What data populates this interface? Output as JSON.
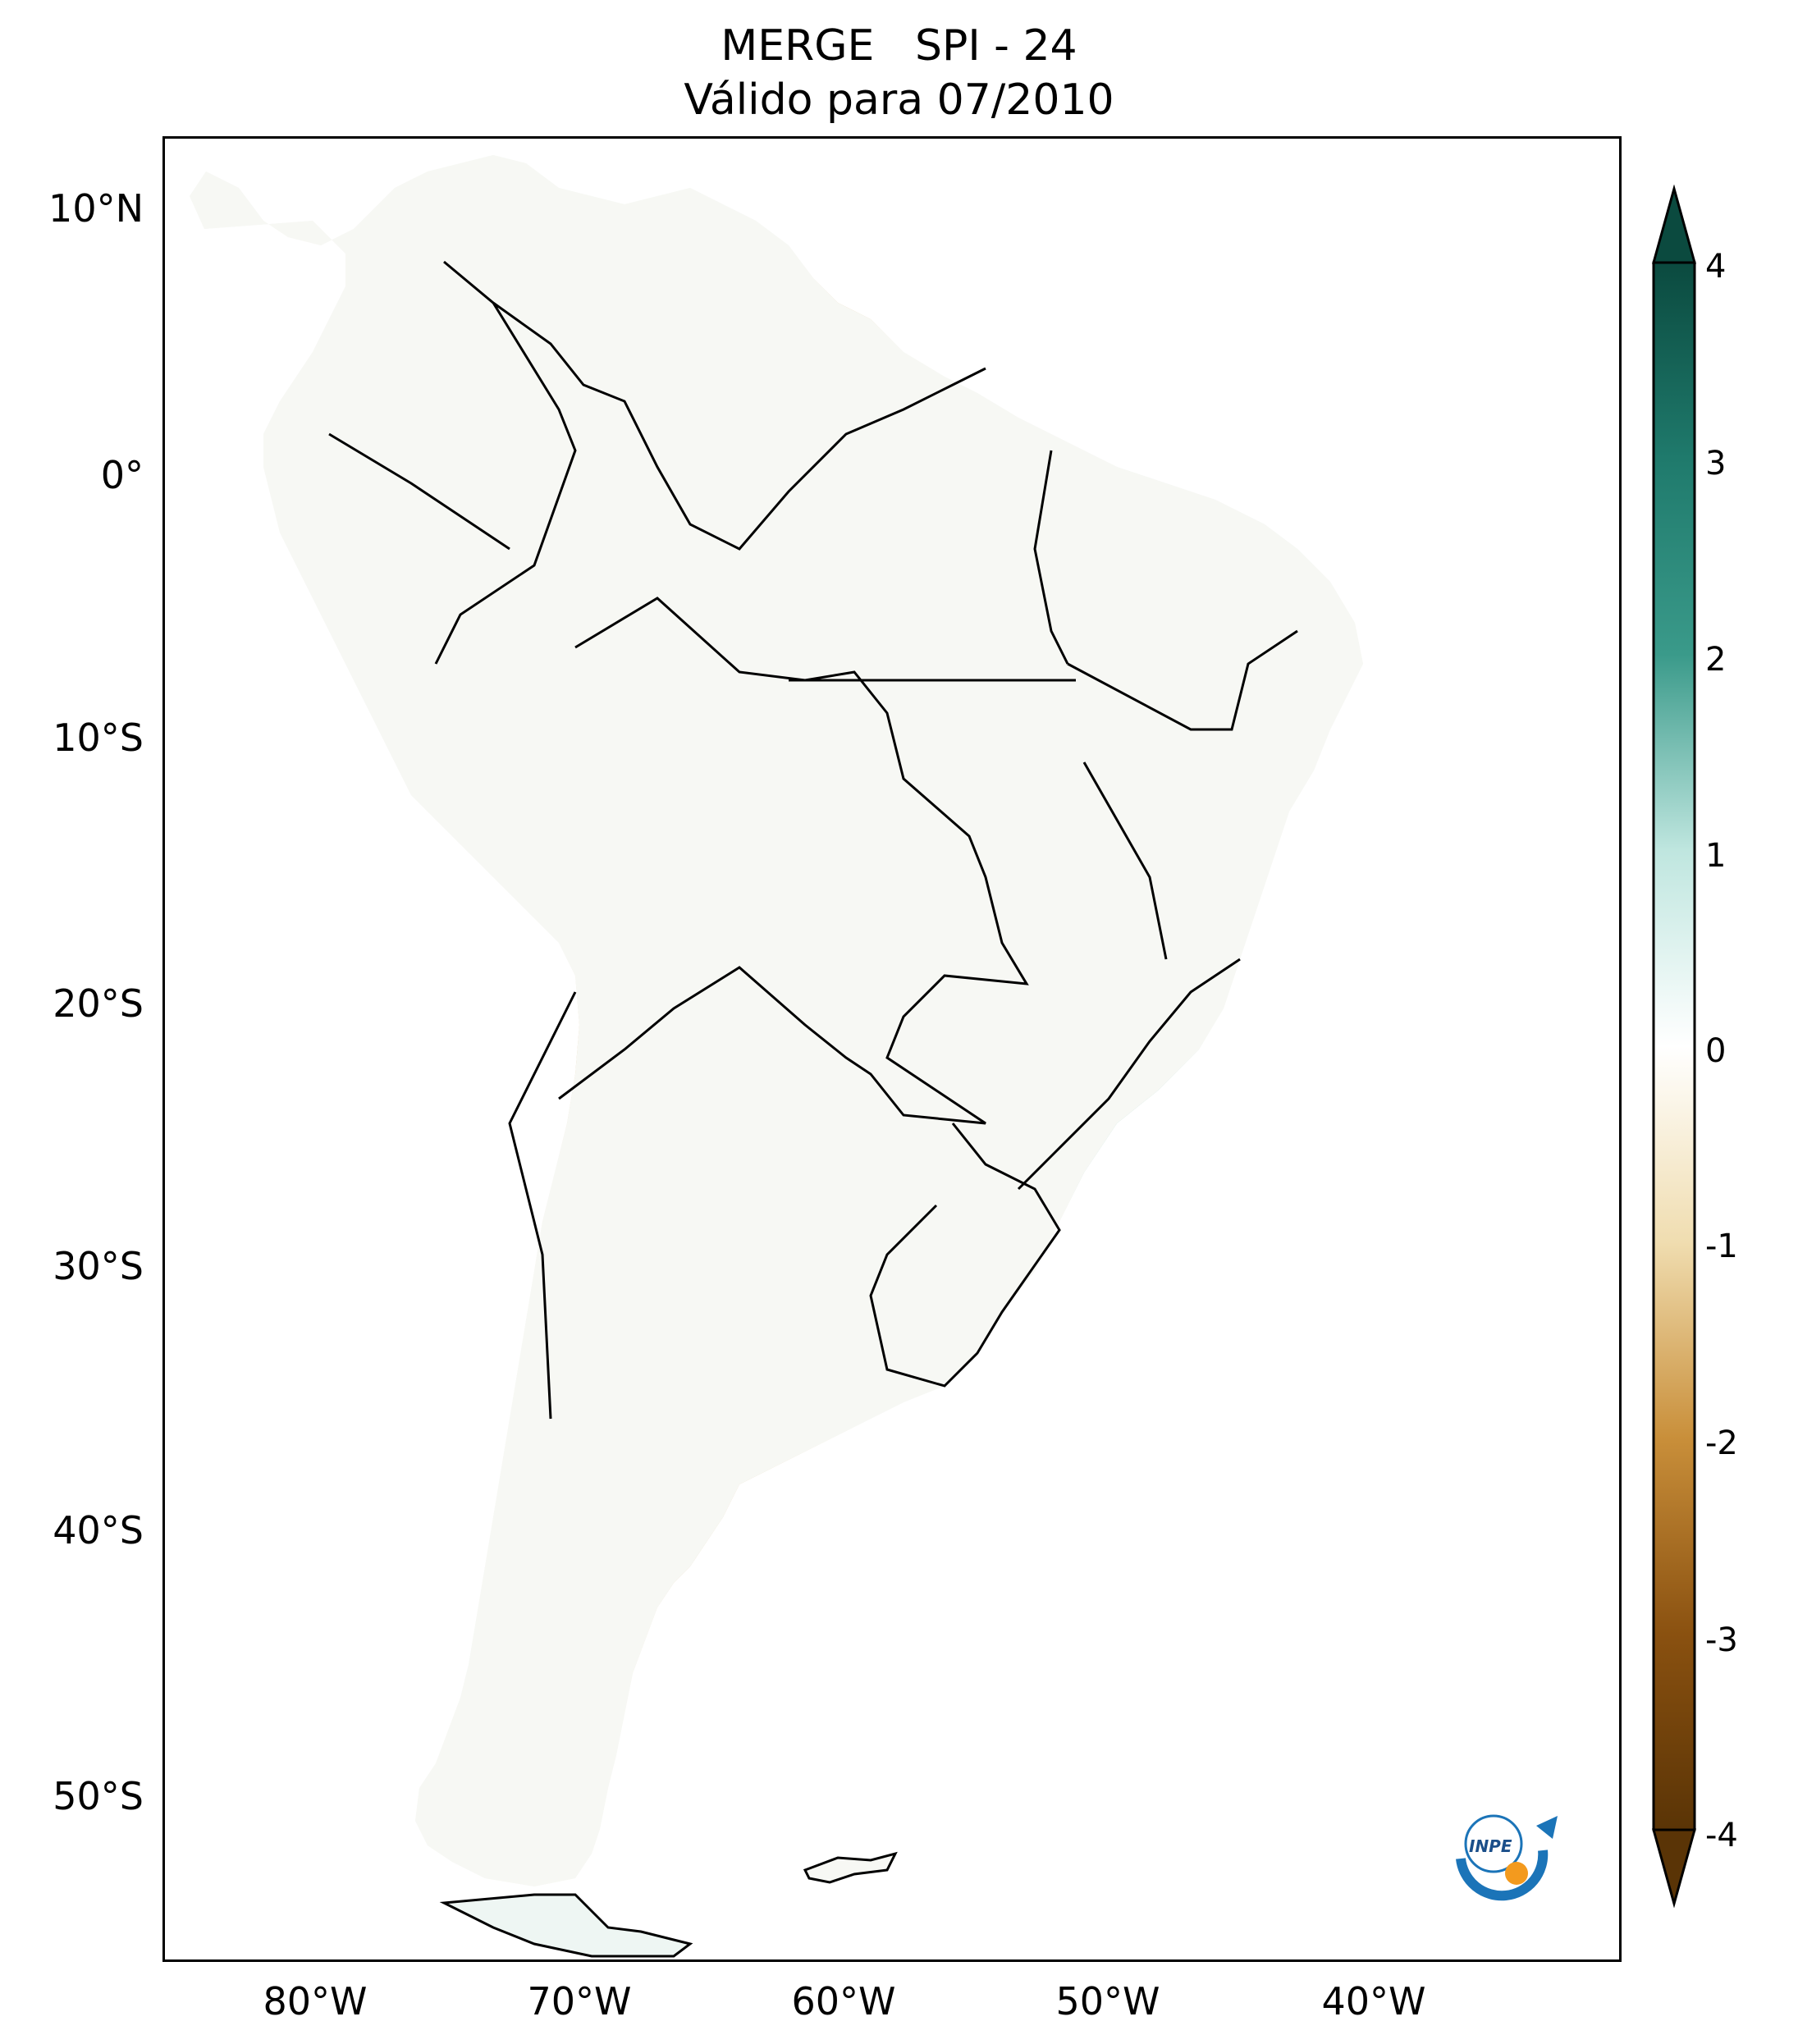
{
  "title": {
    "main": "MERGE   SPI - 24",
    "subtitle": "Válido para 07/2010"
  },
  "axes": {
    "latitude_ticks": [
      "10°N",
      "0°",
      "10°S",
      "20°S",
      "30°S",
      "40°S",
      "50°S"
    ],
    "longitude_ticks": [
      "80°W",
      "70°W",
      "60°W",
      "50°W",
      "40°W"
    ]
  },
  "colorbar": {
    "ticks": [
      "4",
      "3",
      "2",
      "1",
      "0",
      "-1",
      "-2",
      "-3",
      "-4"
    ],
    "extend": "both",
    "colors": {
      "high": "#0b4a3f",
      "mid_high": "#3a9a8a",
      "low_high": "#bfe6df",
      "zero": "#ffffff",
      "low_low": "#f0ddb0",
      "mid_low": "#c98f3a",
      "low": "#5a3406"
    }
  },
  "logo": {
    "text": "INPE"
  }
}
